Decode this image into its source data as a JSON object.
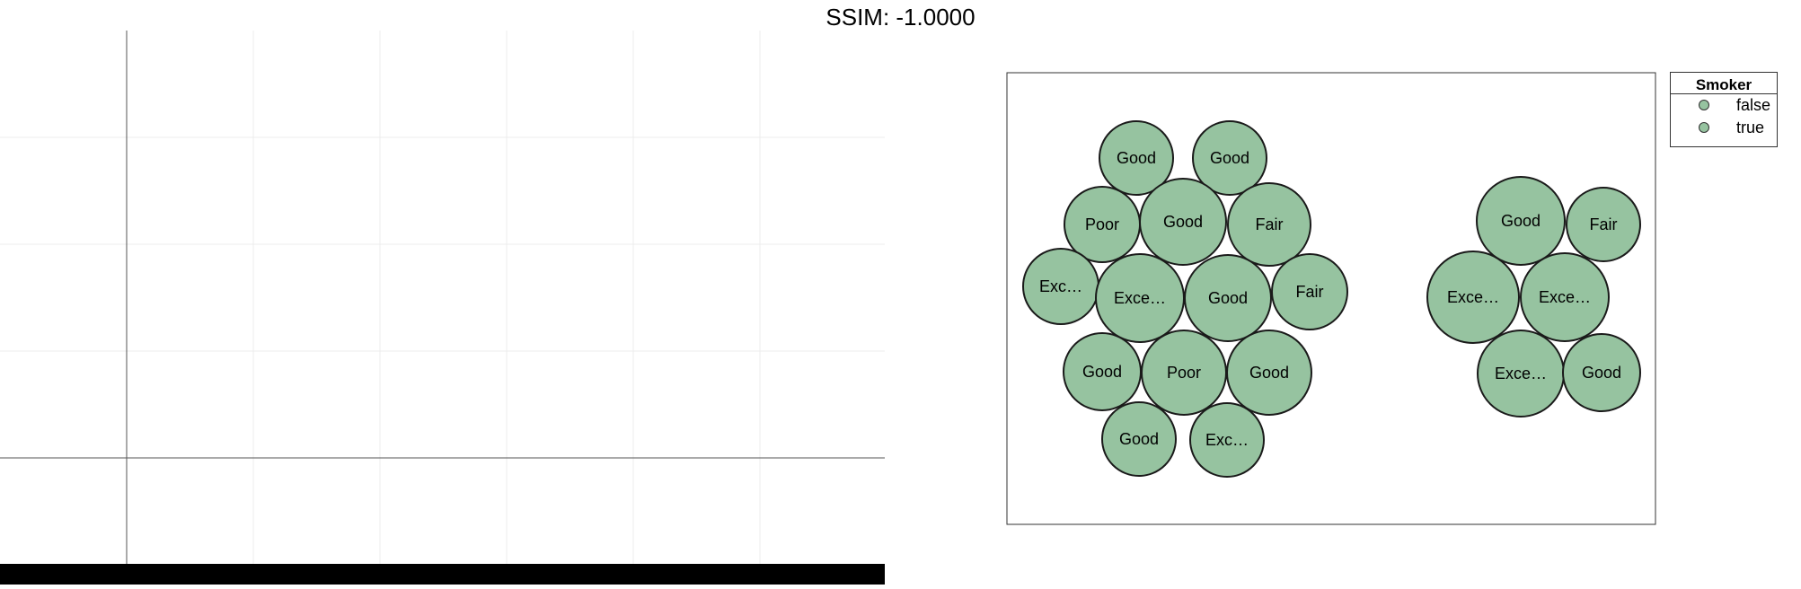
{
  "header": {
    "title": "SSIM: -1.0000"
  },
  "colors": {
    "bubble_fill": "#96c3a0",
    "bubble_stroke": "#1a1a1a",
    "grid": "#ececec",
    "axis": "#555555"
  },
  "chart_data": [
    {
      "type": "line",
      "title": "",
      "xlabel": "",
      "ylabel": "",
      "series": [],
      "grid": true,
      "note_visible": "empty panel with gridlines and axis lines"
    },
    {
      "type": "bubble",
      "title": "",
      "legend": {
        "title": "Smoker",
        "placement": "top-right-outside",
        "entries": [
          "false",
          "true"
        ]
      },
      "groups": [
        {
          "name": "false",
          "bubbles": [
            "Good",
            "Good",
            "Poor",
            "Good",
            "Fair",
            "Exc…",
            "Exce…",
            "Good",
            "Fair",
            "Good",
            "Poor",
            "Good",
            "Good",
            "Exc…"
          ]
        },
        {
          "name": "true",
          "bubbles": [
            "Good",
            "Fair",
            "Exce…",
            "Exce…",
            "Exce…",
            "Good"
          ]
        }
      ]
    }
  ]
}
